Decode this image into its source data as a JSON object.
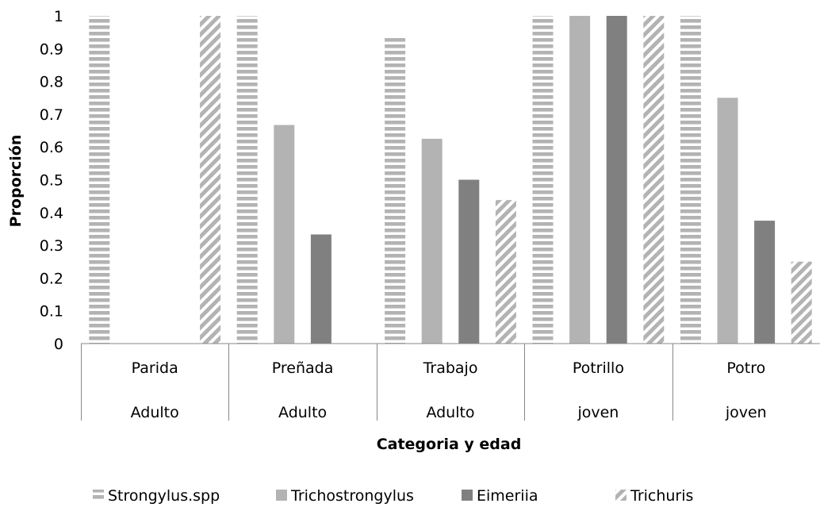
{
  "chart_data": {
    "type": "bar",
    "xlabel": "Categoria y edad",
    "ylabel": "Proporción",
    "ylim": [
      0,
      1
    ],
    "yticks": [
      "0",
      "0.1",
      "0.2",
      "0.3",
      "0.4",
      "0.5",
      "0.6",
      "0.7",
      "0.8",
      "0.9",
      "1"
    ],
    "categories": [
      {
        "name": "Parida",
        "group": "Adulto"
      },
      {
        "name": "Preñada",
        "group": "Adulto"
      },
      {
        "name": "Trabajo",
        "group": "Adulto"
      },
      {
        "name": "Potrillo",
        "group": "joven"
      },
      {
        "name": "Potro",
        "group": "joven"
      }
    ],
    "series": [
      {
        "name": "Strongylus.spp",
        "values": [
          1,
          1,
          0.94,
          1,
          1
        ],
        "color": "#b3b3b3",
        "pattern": "horizontal-stripes"
      },
      {
        "name": "Trichostrongylus",
        "values": [
          0,
          0.667,
          0.625,
          1,
          0.75
        ],
        "color": "#b3b3b3",
        "pattern": "solid"
      },
      {
        "name": "Eimeriia",
        "values": [
          0,
          0.333,
          0.5,
          1,
          0.375
        ],
        "color": "#808080",
        "pattern": "solid"
      },
      {
        "name": "Trichuris",
        "values": [
          1,
          0,
          0.438,
          1,
          0.25
        ],
        "color": "#b3b3b3",
        "pattern": "diagonal-stripes"
      }
    ],
    "grid": false,
    "legend": "bottom"
  }
}
